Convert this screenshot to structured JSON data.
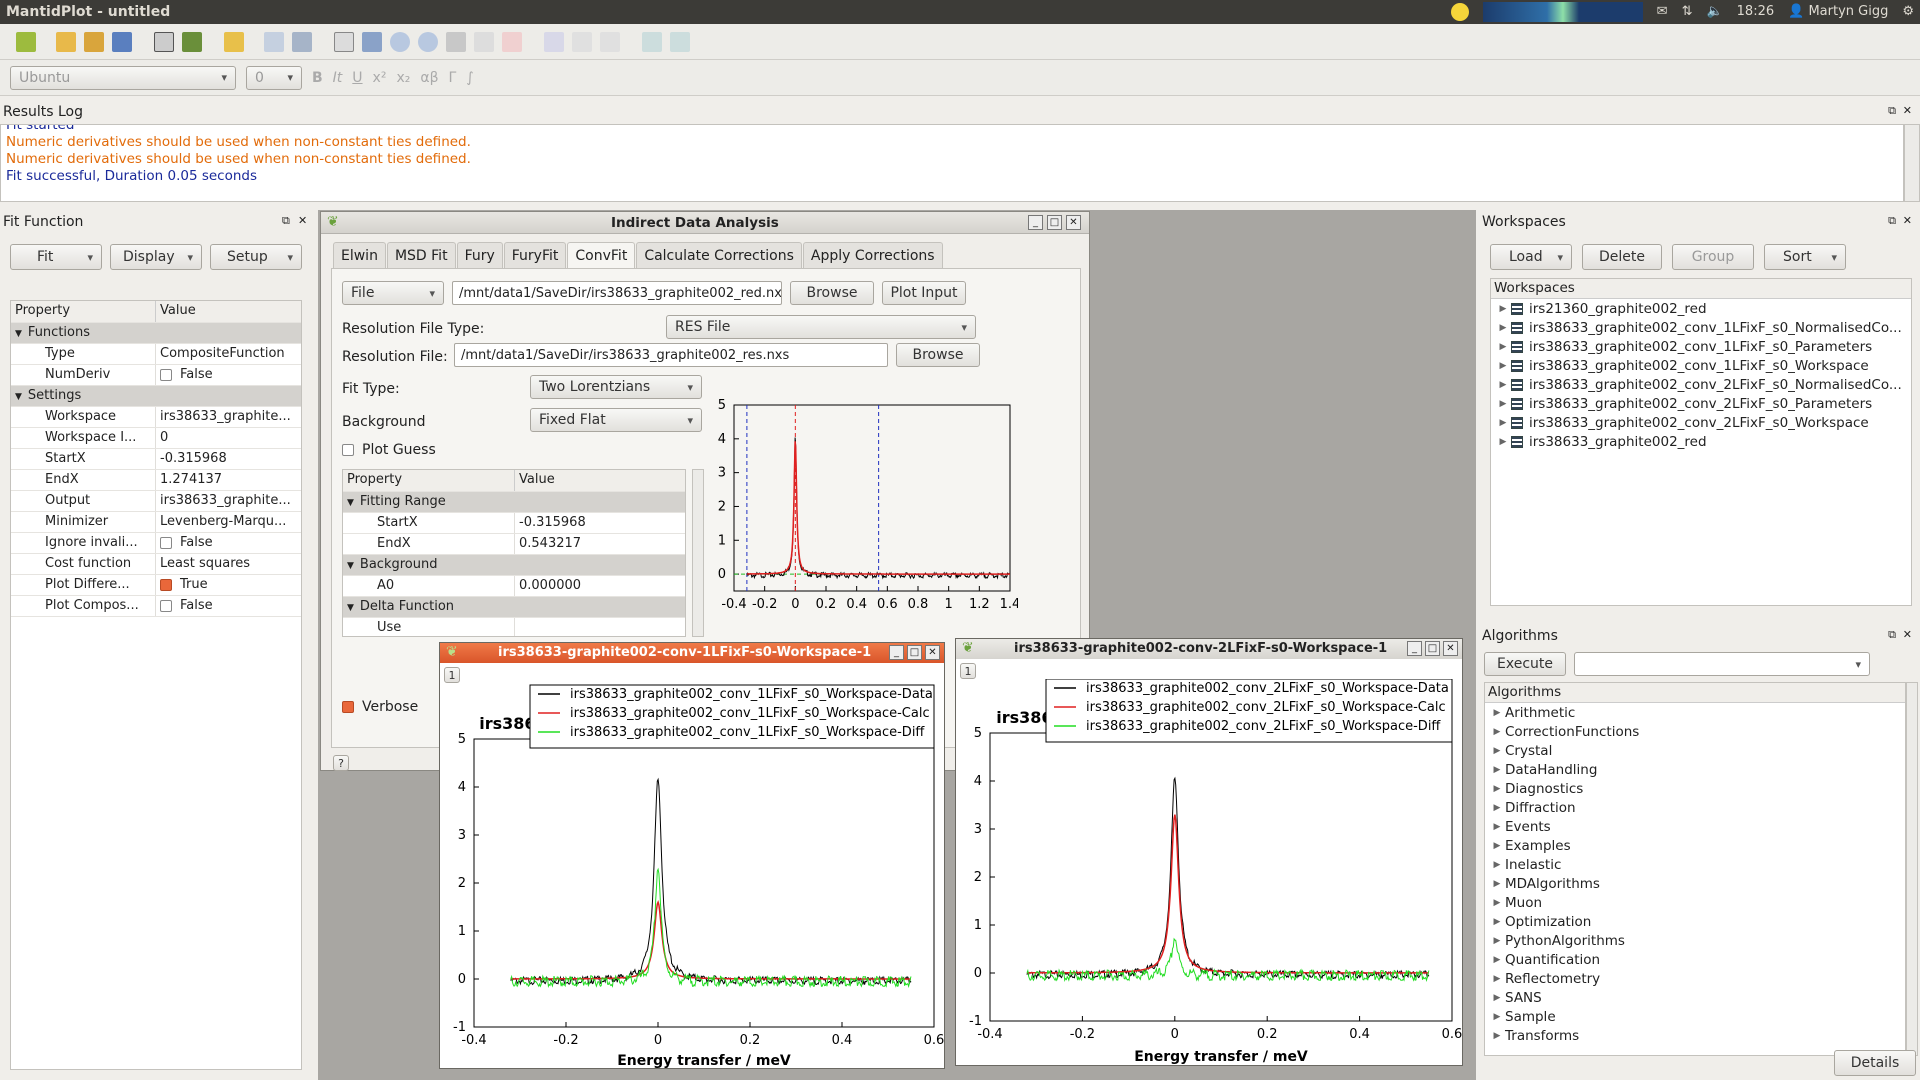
{
  "app": {
    "title": "MantidPlot - untitled"
  },
  "topbar": {
    "time": "18:26",
    "user": "Martyn Gigg"
  },
  "format": {
    "font": "Ubuntu",
    "size": "0"
  },
  "results_log": {
    "title": "Results Log",
    "lines": [
      {
        "text": "Fit started",
        "color": "#1a2a9a"
      },
      {
        "text": "Numeric derivatives should be used when non-constant ties defined.",
        "color": "#e26b0a"
      },
      {
        "text": "Numeric derivatives should be used when non-constant ties defined.",
        "color": "#e26b0a"
      },
      {
        "text": "Fit successful, Duration 0.05 seconds",
        "color": "#1a2a9a"
      }
    ]
  },
  "fit_function": {
    "title": "Fit Function",
    "buttons": {
      "fit": "Fit",
      "display": "Display",
      "setup": "Setup"
    },
    "headers": {
      "property": "Property",
      "value": "Value"
    },
    "rows": [
      {
        "type": "group",
        "label": "Functions"
      },
      {
        "label": "Type",
        "value": "CompositeFunction"
      },
      {
        "label": "NumDeriv",
        "value": "False",
        "check": false
      },
      {
        "type": "group",
        "label": "Settings"
      },
      {
        "label": "Workspace",
        "value": "irs38633_graphite..."
      },
      {
        "label": "Workspace I...",
        "value": "0"
      },
      {
        "label": "StartX",
        "value": "-0.315968"
      },
      {
        "label": "EndX",
        "value": "1.274137"
      },
      {
        "label": "Output",
        "value": "irs38633_graphite..."
      },
      {
        "label": "Minimizer",
        "value": "Levenberg-Marqu..."
      },
      {
        "label": "Ignore invali...",
        "value": "False",
        "check": false
      },
      {
        "label": "Cost function",
        "value": "Least squares"
      },
      {
        "label": "Plot Differe...",
        "value": "True",
        "check": true
      },
      {
        "label": "Plot Compos...",
        "value": "False",
        "check": false
      }
    ]
  },
  "ida": {
    "title": "Indirect Data Analysis",
    "tabs": [
      "Elwin",
      "MSD Fit",
      "Fury",
      "FuryFit",
      "ConvFit",
      "Calculate Corrections",
      "Apply Corrections"
    ],
    "active_tab": "ConvFit",
    "file_mode": "File",
    "file_path": "/mnt/data1/SaveDir/irs38633_graphite002_red.nxs",
    "browse": "Browse",
    "plot_input": "Plot Input",
    "res_type_label": "Resolution File Type:",
    "res_type": "RES File",
    "res_file_label": "Resolution File:",
    "res_file": "/mnt/data1/SaveDir/irs38633_graphite002_res.nxs",
    "fit_type_label": "Fit Type:",
    "fit_type": "Two Lorentzians",
    "background_label": "Background",
    "background": "Fixed Flat",
    "plot_guess": "Plot Guess",
    "verbose": "Verbose",
    "help": "?",
    "prop_headers": {
      "property": "Property",
      "value": "Value"
    },
    "props": [
      {
        "type": "group",
        "label": "Fitting Range"
      },
      {
        "label": "StartX",
        "value": "-0.315968"
      },
      {
        "label": "EndX",
        "value": "0.543217"
      },
      {
        "type": "group",
        "label": "Background"
      },
      {
        "label": "A0",
        "value": "0.000000"
      },
      {
        "type": "group",
        "label": "Delta Function"
      },
      {
        "label": "Use",
        "value": ""
      }
    ]
  },
  "workspaces": {
    "title": "Workspaces",
    "load": "Load",
    "delete": "Delete",
    "group": "Group",
    "sort": "Sort",
    "header": "Workspaces",
    "items": [
      "irs21360_graphite002_red",
      "irs38633_graphite002_conv_1LFixF_s0_NormalisedCo...",
      "irs38633_graphite002_conv_1LFixF_s0_Parameters",
      "irs38633_graphite002_conv_1LFixF_s0_Workspace",
      "irs38633_graphite002_conv_2LFixF_s0_NormalisedCo...",
      "irs38633_graphite002_conv_2LFixF_s0_Parameters",
      "irs38633_graphite002_conv_2LFixF_s0_Workspace",
      "irs38633_graphite002_red"
    ]
  },
  "algorithms": {
    "title": "Algorithms",
    "execute": "Execute",
    "header": "Algorithms",
    "items": [
      "Arithmetic",
      "CorrectionFunctions",
      "Crystal",
      "DataHandling",
      "Diagnostics",
      "Diffraction",
      "Events",
      "Examples",
      "Inelastic",
      "MDAlgorithms",
      "Muon",
      "Optimization",
      "PythonAlgorithms",
      "Quantification",
      "Reflectometry",
      "SANS",
      "Sample",
      "Transforms"
    ],
    "details": "Details"
  },
  "plot1": {
    "window_title": "irs38633-graphite002-conv-1LFixF-s0-Workspace-1",
    "layer": "1"
  },
  "plot2": {
    "window_title": "irs38633-graphite002-conv-2LFixF-s0-Workspace-1",
    "layer": "1"
  },
  "chart_data": [
    {
      "type": "line",
      "title": "",
      "xlim": [
        -0.4,
        1.4
      ],
      "ylim": [
        -0.5,
        5
      ],
      "xticks": [
        "-0.4",
        "-0.2",
        "0",
        "0.2",
        "0.4",
        "0.6",
        "0.8",
        "1",
        "1.2",
        "1.4"
      ],
      "yticks": [
        "0",
        "1",
        "2",
        "3",
        "4",
        "5"
      ],
      "series": [
        {
          "name": "",
          "color": "#000000",
          "peak": 4.1
        },
        {
          "name": "",
          "color": "#e02020",
          "peak": 4.0
        }
      ],
      "markers": [
        -0.315968,
        0.0,
        0.543217
      ]
    },
    {
      "type": "line",
      "title": "Workspace\nirs38633_graphite002_conv_1LFixF_s0_Workspace",
      "xlabel": "Energy transfer / meV",
      "xlim": [
        -0.4,
        0.6
      ],
      "ylim": [
        -1,
        5
      ],
      "xticks": [
        "-0.4",
        "-0.2",
        "0",
        "0.2",
        "0.4",
        "0.6"
      ],
      "yticks": [
        "-1",
        "0",
        "1",
        "2",
        "3",
        "4",
        "5"
      ],
      "series": [
        {
          "name": "irs38633_graphite002_conv_1LFixF_s0_Workspace-Data",
          "color": "#000000",
          "peak": 4.2
        },
        {
          "name": "irs38633_graphite002_conv_1LFixF_s0_Workspace-Calc",
          "color": "#e02020",
          "peak": 1.6
        },
        {
          "name": "irs38633_graphite002_conv_1LFixF_s0_Workspace-Diff",
          "color": "#22dd22",
          "peak": 2.4
        }
      ]
    },
    {
      "type": "line",
      "title": "Workspace\nirs38633_graphite002_conv_2LFixF_s0_Workspace",
      "xlabel": "Energy transfer / meV",
      "xlim": [
        -0.4,
        0.6
      ],
      "ylim": [
        -1,
        5
      ],
      "xticks": [
        "-0.4",
        "-0.2",
        "0",
        "0.2",
        "0.4",
        "0.6"
      ],
      "yticks": [
        "-1",
        "0",
        "1",
        "2",
        "3",
        "4",
        "5"
      ],
      "series": [
        {
          "name": "irs38633_graphite002_conv_2LFixF_s0_Workspace-Data",
          "color": "#000000",
          "peak": 4.1
        },
        {
          "name": "irs38633_graphite002_conv_2LFixF_s0_Workspace-Calc",
          "color": "#e02020",
          "peak": 3.3
        },
        {
          "name": "irs38633_graphite002_conv_2LFixF_s0_Workspace-Diff",
          "color": "#22dd22",
          "peak": 0.8
        }
      ]
    }
  ]
}
